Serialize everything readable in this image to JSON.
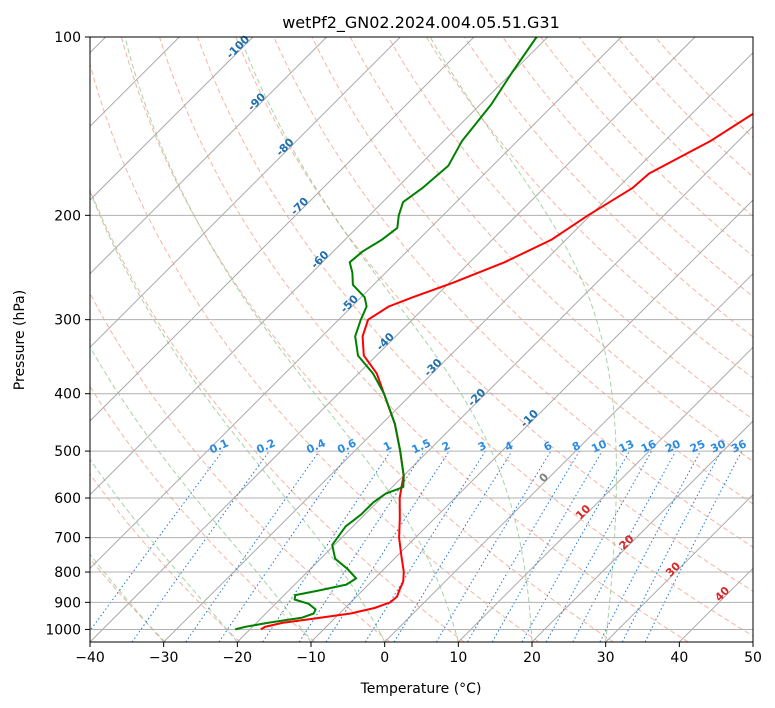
{
  "chart_data": {
    "type": "line",
    "title": "wetPf2_GN02.2024.004.05.51.G31",
    "xlabel": "Temperature (°C)",
    "ylabel": "Pressure (hPa)",
    "xlim": [
      -40,
      50
    ],
    "ylim": [
      1050,
      100
    ],
    "y_scale": "log",
    "grid": true,
    "x_ticks": [
      -40,
      -30,
      -20,
      -10,
      0,
      10,
      20,
      30,
      40,
      50
    ],
    "y_ticks": [
      100,
      200,
      300,
      400,
      500,
      600,
      700,
      800,
      900,
      1000
    ],
    "series": [
      {
        "role": "temperature",
        "color": "#ff0000",
        "points": [
          {
            "p": 1000,
            "t": -18.5
          },
          {
            "p": 990,
            "t": -18.3
          },
          {
            "p": 975,
            "t": -16.5
          },
          {
            "p": 960,
            "t": -13.0
          },
          {
            "p": 940,
            "t": -8.5
          },
          {
            "p": 920,
            "t": -6.0
          },
          {
            "p": 900,
            "t": -4.6
          },
          {
            "p": 880,
            "t": -4.5
          },
          {
            "p": 860,
            "t": -5.0
          },
          {
            "p": 830,
            "t": -5.7
          },
          {
            "p": 800,
            "t": -6.9
          },
          {
            "p": 750,
            "t": -9.5
          },
          {
            "p": 700,
            "t": -12.2
          },
          {
            "p": 650,
            "t": -14.7
          },
          {
            "p": 600,
            "t": -17.5
          },
          {
            "p": 570,
            "t": -19.0
          },
          {
            "p": 550,
            "t": -20.0
          },
          {
            "p": 500,
            "t": -23.8
          },
          {
            "p": 450,
            "t": -28.2
          },
          {
            "p": 400,
            "t": -33.8
          },
          {
            "p": 370,
            "t": -37.5
          },
          {
            "p": 345,
            "t": -41.7
          },
          {
            "p": 320,
            "t": -44.5
          },
          {
            "p": 300,
            "t": -46.0
          },
          {
            "p": 285,
            "t": -45.0
          },
          {
            "p": 275,
            "t": -43.0
          },
          {
            "p": 260,
            "t": -39.5
          },
          {
            "p": 240,
            "t": -35.3
          },
          {
            "p": 220,
            "t": -32.0
          },
          {
            "p": 200,
            "t": -30.3
          },
          {
            "p": 180,
            "t": -28.0
          },
          {
            "p": 170,
            "t": -27.7
          },
          {
            "p": 150,
            "t": -23.8
          },
          {
            "p": 130,
            "t": -21.0
          },
          {
            "p": 115,
            "t": -20.0
          },
          {
            "p": 100,
            "t": -18.4
          }
        ]
      },
      {
        "role": "dewpoint",
        "color": "#008000",
        "points": [
          {
            "p": 1000,
            "t": -22.0
          },
          {
            "p": 990,
            "t": -21.0
          },
          {
            "p": 975,
            "t": -18.5
          },
          {
            "p": 955,
            "t": -14.5
          },
          {
            "p": 940,
            "t": -13.5
          },
          {
            "p": 925,
            "t": -13.8
          },
          {
            "p": 905,
            "t": -15.5
          },
          {
            "p": 890,
            "t": -18.0
          },
          {
            "p": 875,
            "t": -18.5
          },
          {
            "p": 860,
            "t": -16.0
          },
          {
            "p": 840,
            "t": -13.0
          },
          {
            "p": 820,
            "t": -12.5
          },
          {
            "p": 790,
            "t": -15.0
          },
          {
            "p": 760,
            "t": -18.0
          },
          {
            "p": 720,
            "t": -20.3
          },
          {
            "p": 670,
            "t": -21.0
          },
          {
            "p": 640,
            "t": -20.5
          },
          {
            "p": 610,
            "t": -20.5
          },
          {
            "p": 590,
            "t": -20.0
          },
          {
            "p": 575,
            "t": -18.5
          },
          {
            "p": 550,
            "t": -20.0
          },
          {
            "p": 500,
            "t": -23.8
          },
          {
            "p": 450,
            "t": -28.2
          },
          {
            "p": 400,
            "t": -33.8
          },
          {
            "p": 370,
            "t": -38.0
          },
          {
            "p": 345,
            "t": -42.5
          },
          {
            "p": 320,
            "t": -45.5
          },
          {
            "p": 300,
            "t": -47.0
          },
          {
            "p": 285,
            "t": -48.0
          },
          {
            "p": 275,
            "t": -49.5
          },
          {
            "p": 262,
            "t": -52.8
          },
          {
            "p": 250,
            "t": -54.5
          },
          {
            "p": 240,
            "t": -56.3
          },
          {
            "p": 230,
            "t": -56.0
          },
          {
            "p": 220,
            "t": -55.0
          },
          {
            "p": 210,
            "t": -54.5
          },
          {
            "p": 200,
            "t": -56.0
          },
          {
            "p": 190,
            "t": -57.2
          },
          {
            "p": 180,
            "t": -56.5
          },
          {
            "p": 165,
            "t": -56.0
          },
          {
            "p": 150,
            "t": -57.5
          },
          {
            "p": 130,
            "t": -58.5
          },
          {
            "p": 115,
            "t": -60.0
          },
          {
            "p": 100,
            "t": -61.5
          }
        ]
      }
    ],
    "reference_lines": {
      "isotherm_spacing_c": 10,
      "isotherm_color": "#aaaaaa",
      "dry_adiabat_theta_k": [
        210,
        220,
        230,
        240,
        250,
        260,
        270,
        280,
        290,
        300,
        310,
        320,
        330,
        340,
        350,
        360,
        370,
        380,
        390,
        400,
        410,
        420,
        430,
        440
      ],
      "dry_adiabat_color": "#f4a08a",
      "moist_adiabat_start_c": [
        -30,
        -20,
        -10,
        0,
        10,
        20,
        30
      ],
      "moist_adiabat_color": "#7fc07f",
      "mixing_ratio_color": "#1f78d4"
    },
    "annotations": {
      "mixing_ratio_labels": [
        "0.1",
        "0.2",
        "0.4",
        "0.6",
        "1",
        "1.5",
        "2",
        "3",
        "4",
        "6",
        "8",
        "10",
        "13",
        "16",
        "20",
        "25",
        "30",
        "36"
      ],
      "mixing_ratio_values": [
        0.1,
        0.2,
        0.4,
        0.6,
        1,
        1.5,
        2,
        3,
        4,
        6,
        8,
        10,
        13,
        16,
        20,
        25,
        30,
        36
      ],
      "cold_isotherm_labels": [
        "-100",
        "-90",
        "-80",
        "-70",
        "-60",
        "-50",
        "-40",
        "-30",
        "-20",
        "-10"
      ],
      "cold_isotherm_values": [
        -100,
        -90,
        -80,
        -70,
        -60,
        -50,
        -40,
        -30,
        -20,
        -10
      ],
      "warm_isotherm_labels": [
        "0",
        "10",
        "20",
        "30",
        "40"
      ],
      "warm_isotherm_values": [
        0,
        10,
        20,
        30,
        40
      ],
      "cold_label_color": "#1f6fb0",
      "warm_label_color": "#d62728",
      "zero_label_color": "#808080",
      "mixing_label_color": "#2b8be0"
    }
  }
}
